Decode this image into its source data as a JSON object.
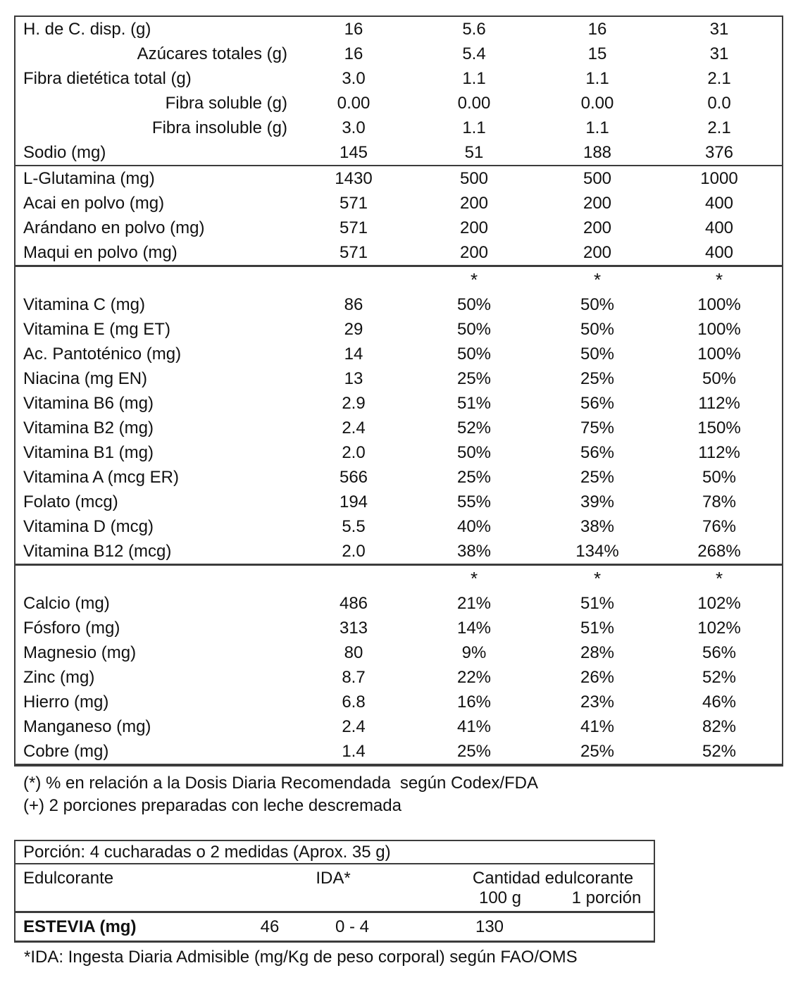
{
  "main_table": {
    "sections": [
      {
        "rows": [
          {
            "label": "H. de C. disp. (g)",
            "indent": false,
            "values": [
              "16",
              "5.6",
              "16",
              "31"
            ]
          },
          {
            "label": "Azúcares totales (g)",
            "indent": true,
            "values": [
              "16",
              "5.4",
              "15",
              "31"
            ]
          },
          {
            "label": "Fibra dietética total (g)",
            "indent": false,
            "values": [
              "3.0",
              "1.1",
              "1.1",
              "2.1"
            ]
          },
          {
            "label": "Fibra soluble (g)",
            "indent": true,
            "values": [
              "0.00",
              "0.00",
              "0.00",
              "0.0"
            ]
          },
          {
            "label": "Fibra insoluble (g)",
            "indent": true,
            "values": [
              "3.0",
              "1.1",
              "1.1",
              "2.1"
            ]
          },
          {
            "label": "Sodio (mg)",
            "indent": false,
            "values": [
              "145",
              "51",
              "188",
              "376"
            ]
          }
        ]
      },
      {
        "rows": [
          {
            "label": "L-Glutamina (mg)",
            "indent": false,
            "values": [
              "1430",
              "500",
              "500",
              "1000"
            ]
          },
          {
            "label": "Acai en polvo (mg)",
            "indent": false,
            "values": [
              "571",
              "200",
              "200",
              "400"
            ]
          },
          {
            "label": "Arándano en polvo (mg)",
            "indent": false,
            "values": [
              "571",
              "200",
              "200",
              "400"
            ]
          },
          {
            "label": "Maqui en polvo (mg)",
            "indent": false,
            "values": [
              "571",
              "200",
              "200",
              "400"
            ]
          }
        ]
      },
      {
        "header_marks": [
          "",
          "*",
          "*",
          "*"
        ],
        "rows": [
          {
            "label": "Vitamina C (mg)",
            "indent": false,
            "values": [
              "86",
              "50%",
              "50%",
              "100%"
            ]
          },
          {
            "label": "Vitamina E (mg ET)",
            "indent": false,
            "values": [
              "29",
              "50%",
              "50%",
              "100%"
            ]
          },
          {
            "label": "Ac. Pantoténico (mg)",
            "indent": false,
            "values": [
              "14",
              "50%",
              "50%",
              "100%"
            ]
          },
          {
            "label": "Niacina (mg EN)",
            "indent": false,
            "values": [
              "13",
              "25%",
              "25%",
              "50%"
            ]
          },
          {
            "label": "Vitamina B6 (mg)",
            "indent": false,
            "values": [
              "2.9",
              "51%",
              "56%",
              "112%"
            ]
          },
          {
            "label": "Vitamina B2 (mg)",
            "indent": false,
            "values": [
              "2.4",
              "52%",
              "75%",
              "150%"
            ]
          },
          {
            "label": "Vitamina B1 (mg)",
            "indent": false,
            "values": [
              "2.0",
              "50%",
              "56%",
              "112%"
            ]
          },
          {
            "label": "Vitamina A (mcg ER)",
            "indent": false,
            "values": [
              "566",
              "25%",
              "25%",
              "50%"
            ]
          },
          {
            "label": "Folato (mcg)",
            "indent": false,
            "values": [
              "194",
              "55%",
              "39%",
              "78%"
            ]
          },
          {
            "label": "Vitamina D (mcg)",
            "indent": false,
            "values": [
              "5.5",
              "40%",
              "38%",
              "76%"
            ]
          },
          {
            "label": "Vitamina B12 (mcg)",
            "indent": false,
            "values": [
              "2.0",
              "38%",
              "134%",
              "268%"
            ]
          }
        ]
      },
      {
        "header_marks": [
          "",
          "*",
          "*",
          "*"
        ],
        "rows": [
          {
            "label": "Calcio (mg)",
            "indent": false,
            "values": [
              "486",
              "21%",
              "51%",
              "102%"
            ]
          },
          {
            "label": "Fósforo (mg)",
            "indent": false,
            "values": [
              "313",
              "14%",
              "51%",
              "102%"
            ]
          },
          {
            "label": "Magnesio (mg)",
            "indent": false,
            "values": [
              "80",
              "9%",
              "28%",
              "56%"
            ]
          },
          {
            "label": "Zinc (mg)",
            "indent": false,
            "values": [
              "8.7",
              "22%",
              "26%",
              "52%"
            ]
          },
          {
            "label": "Hierro (mg)",
            "indent": false,
            "values": [
              "6.8",
              "16%",
              "23%",
              "46%"
            ]
          },
          {
            "label": "Manganeso (mg)",
            "indent": false,
            "values": [
              "2.4",
              "41%",
              "41%",
              "82%"
            ]
          },
          {
            "label": "Cobre (mg)",
            "indent": false,
            "values": [
              "1.4",
              "25%",
              "25%",
              "52%"
            ]
          }
        ]
      }
    ]
  },
  "footnotes": {
    "codex": "(*) % en relación a la Dosis Diaria Recomendada  según Codex/FDA",
    "porciones": "(+) 2 porciones preparadas con leche descremada",
    "ida": "*IDA: Ingesta Diaria Admisible (mg/Kg de peso corporal) según FAO/OMS"
  },
  "sweetener_table": {
    "portion_header": "Porción: 4 cucharadas o 2 medidas (Aprox. 35 g)",
    "col_headers": {
      "edulcorante": "Edulcorante",
      "ida": "IDA*",
      "cantidad": "Cantidad edulcorante",
      "per_100g": "100 g",
      "per_portion": "1 porción"
    },
    "rows": [
      {
        "label": "ESTEVIA (mg)",
        "amount": "46",
        "ida": "0 - 4",
        "per_100g": "130",
        "per_portion": ""
      }
    ]
  }
}
